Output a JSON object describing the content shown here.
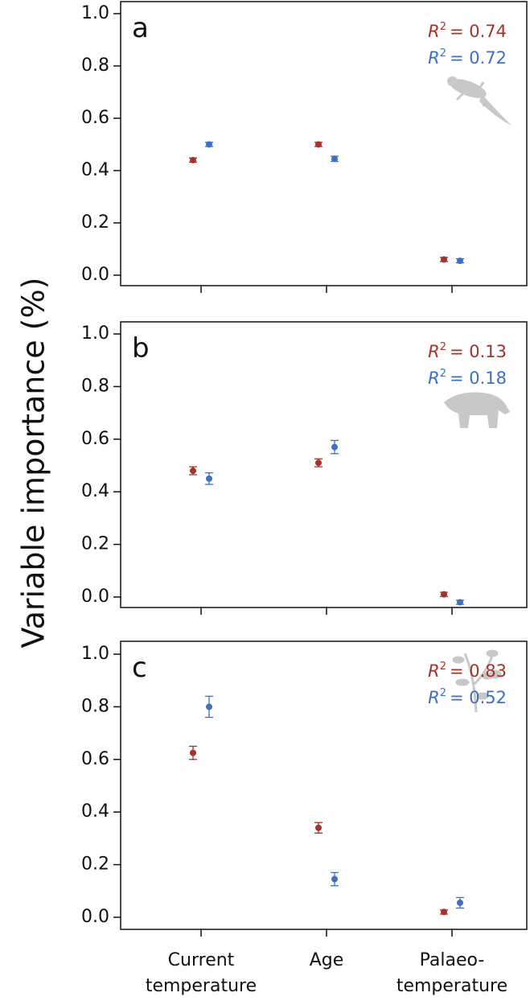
{
  "chart_data": [
    {
      "type": "dot-errorbar",
      "title": "a",
      "ylim": [
        -0.04,
        1.046
      ],
      "yticks": [
        {
          "value": 0,
          "label": "0.0"
        },
        0.2,
        0.4,
        0.6,
        0.8,
        {
          "value": 1,
          "label": "1.0"
        }
      ],
      "series": [
        {
          "color": "#a3322b",
          "values": [
            0.44,
            0.5,
            0.06
          ],
          "errors": [
            0.008,
            0.008,
            0.008
          ]
        },
        {
          "color": "#3d6fc2",
          "values": [
            0.5,
            0.445,
            0.055
          ],
          "errors": [
            0.008,
            0.01,
            0.008
          ]
        }
      ],
      "annotations": [
        {
          "symbol": "R",
          "power": "2",
          "text": "= 0.74",
          "color": "#a3322b"
        },
        {
          "symbol": "R",
          "power": "2",
          "text": "= 0.72",
          "color": "#3d6fc2"
        }
      ]
    },
    {
      "type": "dot-errorbar",
      "title": "b",
      "ylim": [
        -0.04,
        1.046
      ],
      "yticks": [
        {
          "value": 0,
          "label": "0.0"
        },
        0.2,
        0.4,
        0.6,
        0.8,
        {
          "value": 1,
          "label": "1.0"
        }
      ],
      "series": [
        {
          "color": "#a3322b",
          "values": [
            0.48,
            0.51,
            0.01
          ],
          "errors": [
            0.015,
            0.015,
            0.008
          ]
        },
        {
          "color": "#3d6fc2",
          "values": [
            0.45,
            0.57,
            -0.02
          ],
          "errors": [
            0.022,
            0.025,
            0.008
          ]
        }
      ],
      "annotations": [
        {
          "symbol": "R",
          "power": "2",
          "text": "= 0.13",
          "color": "#a3322b"
        },
        {
          "symbol": "R",
          "power": "2",
          "text": "= 0.18",
          "color": "#3d6fc2"
        }
      ]
    },
    {
      "type": "dot-errorbar",
      "title": "c",
      "categories": [
        "Current temperature",
        "Age",
        "Palaeo-temperature"
      ],
      "ylabel": "Variable importance (%)",
      "ylim": [
        -0.046,
        1.049
      ],
      "yticks": [
        {
          "value": 0,
          "label": "0.0"
        },
        0.2,
        0.4,
        0.6,
        0.8,
        {
          "value": 1,
          "label": "1.0"
        }
      ],
      "series": [
        {
          "color": "#a3322b",
          "values": [
            0.625,
            0.34,
            0.02
          ],
          "errors": [
            0.025,
            0.02,
            0.008
          ]
        },
        {
          "color": "#3d6fc2",
          "values": [
            0.8,
            0.145,
            0.055
          ],
          "errors": [
            0.04,
            0.025,
            0.02
          ]
        }
      ],
      "annotations": [
        {
          "symbol": "R",
          "power": "2",
          "text": "= 0.83",
          "color": "#a3322b"
        },
        {
          "symbol": "R",
          "power": "2",
          "text": "= 0.52",
          "color": "#3d6fc2"
        }
      ]
    }
  ]
}
